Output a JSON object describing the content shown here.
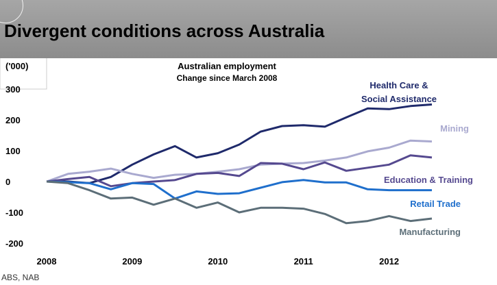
{
  "page": {
    "title": "Divergent conditions across Australia",
    "source": "ABS, NAB"
  },
  "chart_data": {
    "type": "line",
    "title": "Australian employment",
    "subtitle": "Change since March 2008",
    "ylabel": "('000)",
    "xlabel": "",
    "ylim": [
      -200,
      300
    ],
    "yticks": [
      300,
      200,
      100,
      0,
      -100,
      -200
    ],
    "xticks": [
      "2008",
      "2009",
      "2010",
      "2011",
      "2012"
    ],
    "xlim": [
      2008.0,
      2012.9
    ],
    "grid": false,
    "x": [
      2008.0,
      2008.25,
      2008.5,
      2008.75,
      2009.0,
      2009.25,
      2009.5,
      2009.75,
      2010.0,
      2010.25,
      2010.5,
      2010.75,
      2011.0,
      2011.25,
      2011.5,
      2011.75,
      2012.0,
      2012.25,
      2012.5
    ],
    "series": [
      {
        "name": "Health Care & Social Assistance",
        "color": "#1f2a6b",
        "values": [
          0,
          0,
          -5,
          15,
          55,
          88,
          115,
          78,
          92,
          120,
          162,
          180,
          183,
          178,
          208,
          237,
          235,
          245,
          250
        ]
      },
      {
        "name": "Mining",
        "color": "#a9a9cf",
        "values": [
          0,
          25,
          32,
          42,
          25,
          12,
          22,
          25,
          32,
          40,
          55,
          58,
          60,
          68,
          78,
          98,
          110,
          133,
          130
        ]
      },
      {
        "name": "Education & Training",
        "color": "#55498f",
        "values": [
          0,
          8,
          15,
          -15,
          -5,
          0,
          5,
          25,
          28,
          18,
          60,
          58,
          40,
          62,
          35,
          45,
          55,
          85,
          78
        ]
      },
      {
        "name": "Retail Trade",
        "color": "#1f6fcc",
        "values": [
          0,
          -2,
          -5,
          -25,
          -5,
          -8,
          -55,
          -32,
          -40,
          -38,
          -20,
          -2,
          5,
          -3,
          -3,
          -25,
          -28,
          -28,
          -28
        ]
      },
      {
        "name": "Manufacturing",
        "color": "#5c6e78",
        "values": [
          0,
          -5,
          -28,
          -55,
          -52,
          -75,
          -55,
          -85,
          -68,
          -100,
          -85,
          -85,
          -88,
          -105,
          -135,
          -128,
          -112,
          -128,
          -120
        ]
      }
    ]
  }
}
